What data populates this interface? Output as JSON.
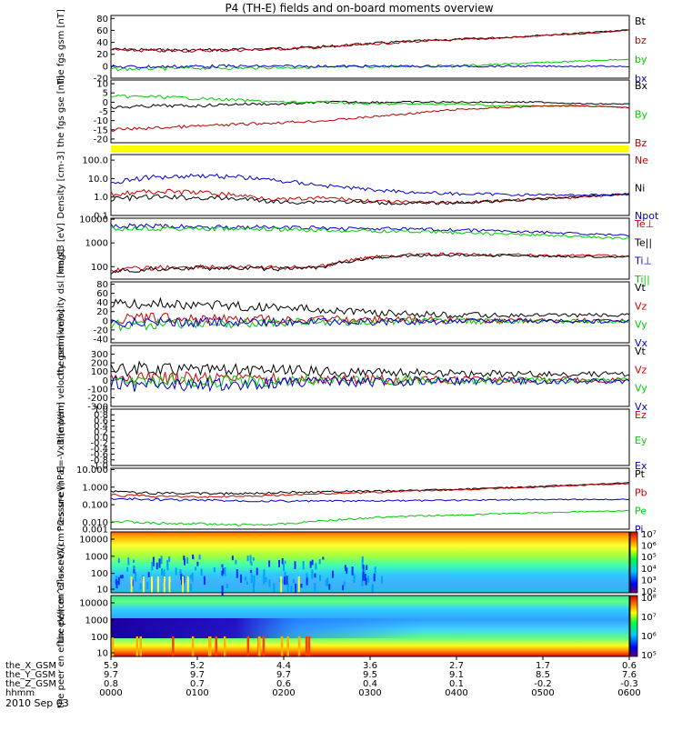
{
  "title": "P4 (TH-E) fields and on-board moments overview",
  "date_label": "2010 Sep 03",
  "chart_data": [
    {
      "type": "line",
      "ylabel": "the fgs gsm [nT]",
      "ylim": [
        -20,
        85
      ],
      "yticks": [
        "80",
        "60",
        "40",
        "20",
        "0",
        "-20"
      ],
      "ytick_values": [
        80,
        60,
        40,
        20,
        0,
        -20
      ],
      "series": [
        {
          "name": "Bt",
          "color": "#000000",
          "x": [
            0,
            0.5,
            1,
            1.5,
            2,
            2.5,
            3,
            3.5,
            4,
            4.5,
            5,
            5.5,
            6
          ],
          "values": [
            28,
            27,
            27,
            28,
            30,
            33,
            38,
            42,
            45,
            48,
            52,
            56,
            61
          ]
        },
        {
          "name": "bz",
          "color": "#bb0000",
          "x": [
            0,
            0.5,
            1,
            1.5,
            2,
            2.5,
            3,
            3.5,
            4,
            4.5,
            5,
            5.5,
            6
          ],
          "values": [
            27,
            26,
            26,
            27,
            29,
            32,
            37,
            41,
            44,
            47,
            51,
            55,
            60
          ]
        },
        {
          "name": "by",
          "color": "#00cc00",
          "x": [
            0,
            0.5,
            1,
            1.5,
            2,
            2.5,
            3,
            3.5,
            4,
            4.5,
            5,
            5.5,
            6
          ],
          "values": [
            -5,
            -4,
            -3,
            -3,
            -2,
            -2,
            -1,
            0,
            1,
            3,
            6,
            9,
            12
          ]
        },
        {
          "name": "bx",
          "color": "#0000cc",
          "x": [
            0,
            0.5,
            1,
            1.5,
            2,
            2.5,
            3,
            3.5,
            4,
            4.5,
            5,
            5.5,
            6
          ],
          "values": [
            -1,
            -1,
            0,
            0,
            0,
            0,
            0,
            0,
            0,
            0,
            0,
            0,
            0
          ]
        }
      ]
    },
    {
      "type": "line",
      "ylabel": "the fgs gse [nT]",
      "ylim": [
        -22,
        12
      ],
      "yticks": [
        "10",
        "5",
        "0",
        "-5",
        "-10",
        "-15",
        "-20"
      ],
      "ytick_values": [
        10,
        5,
        0,
        -5,
        -10,
        -15,
        -20
      ],
      "series": [
        {
          "name": "Bx",
          "color": "#000000",
          "x": [
            0,
            0.5,
            1,
            1.5,
            2,
            2.5,
            3,
            3.5,
            4,
            4.5,
            5,
            5.5,
            6
          ],
          "values": [
            -3,
            -2,
            -2,
            -1,
            -1,
            0,
            0,
            0,
            0,
            0,
            0,
            -1,
            -1
          ]
        },
        {
          "name": "By",
          "color": "#00cc00",
          "x": [
            0,
            0.5,
            1,
            1.5,
            2,
            2.5,
            3,
            3.5,
            4,
            4.5,
            5,
            5.5,
            6
          ],
          "values": [
            3,
            3,
            2,
            1,
            0,
            0,
            -1,
            -1,
            -1,
            -2,
            -2,
            -2,
            -3
          ]
        },
        {
          "name": "Bz",
          "color": "#bb0000",
          "x": [
            0,
            0.5,
            1,
            1.5,
            2,
            2.5,
            3,
            3.5,
            4,
            4.5,
            5,
            5.5,
            6
          ],
          "values": [
            -15,
            -14,
            -13,
            -12,
            -11,
            -10,
            -8,
            -6,
            -4,
            -3,
            -2,
            -2,
            -3
          ]
        }
      ]
    },
    {
      "type": "line",
      "scale": "log",
      "ylabel": "Density [cm-3]",
      "ylim": [
        0.1,
        200
      ],
      "yticks": [
        "100.0",
        "10.0",
        "1.0",
        "0.1"
      ],
      "ytick_values": [
        100,
        10,
        1,
        0.1
      ],
      "series": [
        {
          "name": "Ne",
          "color": "#cc0000",
          "x": [
            0,
            0.5,
            1,
            1.5,
            2,
            2.5,
            3,
            3.5,
            4,
            4.5,
            5,
            5.5,
            6
          ],
          "values": [
            1.5,
            2.0,
            1.8,
            1.2,
            0.7,
            0.9,
            0.6,
            0.5,
            0.5,
            0.6,
            0.8,
            1.0,
            1.4
          ]
        },
        {
          "name": "Ni",
          "color": "#000000",
          "x": [
            0,
            0.5,
            1,
            1.5,
            2,
            2.5,
            3,
            3.5,
            4,
            4.5,
            5,
            5.5,
            6
          ],
          "values": [
            0.8,
            1.0,
            0.9,
            0.8,
            0.5,
            0.6,
            0.5,
            0.45,
            0.5,
            0.6,
            0.8,
            1.1,
            1.5
          ]
        },
        {
          "name": "Npot",
          "color": "#0000cc",
          "x": [
            0,
            0.5,
            1,
            1.5,
            2,
            2.5,
            3,
            3.5,
            4,
            4.5,
            5,
            5.5,
            6
          ],
          "values": [
            6,
            12,
            15,
            12,
            7,
            4,
            2.5,
            1.8,
            1.5,
            1.4,
            1.3,
            1.3,
            1.4
          ]
        }
      ]
    },
    {
      "type": "line",
      "scale": "log",
      "ylabel": "magt3 [eV]",
      "ylim": [
        30,
        11000
      ],
      "yticks": [
        "10000",
        "1000",
        "100"
      ],
      "ytick_values": [
        10000,
        1000,
        100
      ],
      "series": [
        {
          "name": "Te⊥",
          "color": "#cc0000",
          "x": [
            0,
            0.5,
            1,
            1.5,
            2,
            2.5,
            3,
            3.5,
            4,
            4.5,
            5,
            5.5,
            6
          ],
          "values": [
            70,
            90,
            100,
            95,
            90,
            110,
            250,
            320,
            330,
            320,
            300,
            300,
            280
          ]
        },
        {
          "name": "Te||",
          "color": "#000000",
          "x": [
            0,
            0.5,
            1,
            1.5,
            2,
            2.5,
            3,
            3.5,
            4,
            4.5,
            5,
            5.5,
            6
          ],
          "values": [
            60,
            80,
            90,
            85,
            80,
            100,
            230,
            300,
            310,
            300,
            280,
            270,
            260
          ]
        },
        {
          "name": "Ti⊥",
          "color": "#0000cc",
          "x": [
            0,
            0.5,
            1,
            1.5,
            2,
            2.5,
            3,
            3.5,
            4,
            4.5,
            5,
            5.5,
            6
          ],
          "values": [
            5000,
            5000,
            4800,
            4600,
            4400,
            4200,
            4000,
            3800,
            3500,
            3200,
            2800,
            2400,
            2000
          ]
        },
        {
          "name": "Ti||",
          "color": "#00cc00",
          "x": [
            0,
            0.5,
            1,
            1.5,
            2,
            2.5,
            3,
            3.5,
            4,
            4.5,
            5,
            5.5,
            6
          ],
          "values": [
            4000,
            4200,
            4000,
            3800,
            3600,
            3400,
            3200,
            3000,
            2700,
            2400,
            2100,
            1800,
            1500
          ]
        }
      ]
    },
    {
      "type": "line",
      "ylabel": "the peim velocity dsl [km/s]",
      "ylim": [
        -48,
        85
      ],
      "yticks": [
        "80",
        "60",
        "40",
        "20",
        "0",
        "-20",
        "-40"
      ],
      "ytick_values": [
        80,
        60,
        40,
        20,
        0,
        -20,
        -40
      ],
      "series": [
        {
          "name": "Vt",
          "color": "#000000",
          "x": [
            0,
            0.5,
            1,
            1.5,
            2,
            2.5,
            3,
            3.5,
            4,
            4.5,
            5,
            5.5,
            6
          ],
          "values": [
            35,
            38,
            35,
            32,
            28,
            25,
            18,
            15,
            12,
            12,
            12,
            12,
            12
          ]
        },
        {
          "name": "Vz",
          "color": "#cc0000",
          "x": [
            0,
            0.5,
            1,
            1.5,
            2,
            2.5,
            3,
            3.5,
            4,
            4.5,
            5,
            5.5,
            6
          ],
          "values": [
            5,
            6,
            5,
            4,
            3,
            3,
            2,
            2,
            1,
            1,
            1,
            1,
            1
          ]
        },
        {
          "name": "Vy",
          "color": "#00cc00",
          "x": [
            0,
            0.5,
            1,
            1.5,
            2,
            2.5,
            3,
            3.5,
            4,
            4.5,
            5,
            5.5,
            6
          ],
          "values": [
            -10,
            -8,
            -7,
            -5,
            -4,
            -3,
            -2,
            -2,
            -1,
            -1,
            -1,
            -1,
            -1
          ]
        },
        {
          "name": "Vx",
          "color": "#0000cc",
          "x": [
            0,
            0.5,
            1,
            1.5,
            2,
            2.5,
            3,
            3.5,
            4,
            4.5,
            5,
            5.5,
            6
          ],
          "values": [
            -5,
            -4,
            -4,
            -3,
            -3,
            -2,
            -2,
            -2,
            -1,
            -1,
            -1,
            -1,
            -1
          ]
        }
      ]
    },
    {
      "type": "line",
      "ylabel": "the peim velocity gsm [km/s]",
      "ylim": [
        -300,
        400
      ],
      "yticks": [
        "300",
        "200",
        "100",
        "0",
        "-100",
        "-200",
        "-300"
      ],
      "ytick_values": [
        300,
        200,
        100,
        0,
        -100,
        -200,
        -300
      ],
      "series": [
        {
          "name": "Vt",
          "color": "#000000",
          "x": [
            0,
            0.5,
            1,
            1.5,
            2,
            2.5,
            3,
            3.5,
            4,
            4.5,
            5,
            5.5,
            6
          ],
          "values": [
            120,
            140,
            130,
            120,
            110,
            100,
            90,
            80,
            75,
            70,
            70,
            70,
            70
          ]
        },
        {
          "name": "Vz",
          "color": "#cc0000",
          "x": [
            0,
            0.5,
            1,
            1.5,
            2,
            2.5,
            3,
            3.5,
            4,
            4.5,
            5,
            5.5,
            6
          ],
          "values": [
            20,
            30,
            25,
            20,
            15,
            10,
            10,
            5,
            5,
            5,
            5,
            5,
            5
          ]
        },
        {
          "name": "Vy",
          "color": "#00cc00",
          "x": [
            0,
            0.5,
            1,
            1.5,
            2,
            2.5,
            3,
            3.5,
            4,
            4.5,
            5,
            5.5,
            6
          ],
          "values": [
            -20,
            -15,
            -10,
            -10,
            -5,
            -5,
            0,
            0,
            0,
            0,
            0,
            0,
            0
          ]
        },
        {
          "name": "Vx",
          "color": "#0000cc",
          "x": [
            0,
            0.5,
            1,
            1.5,
            2,
            2.5,
            3,
            3.5,
            4,
            4.5,
            5,
            5.5,
            6
          ],
          "values": [
            -40,
            -60,
            -50,
            -40,
            -30,
            -20,
            -20,
            -10,
            -10,
            -10,
            -10,
            -10,
            -10
          ]
        }
      ]
    },
    {
      "type": "line",
      "ylabel": "E=-VxB [mV/m]",
      "ylim": [
        -1.0,
        1.0
      ],
      "yticks": [
        "1.0",
        "0.8",
        "0.6",
        "0.4",
        "0.2",
        "0.0",
        "-0.2",
        "-0.4",
        "-0.6",
        "-0.8",
        "-1.0"
      ],
      "ytick_values": [
        1.0,
        0.8,
        0.6,
        0.4,
        0.2,
        0.0,
        -0.2,
        -0.4,
        -0.6,
        -0.8,
        -1.0
      ],
      "series": [
        {
          "name": "Ez",
          "color": "#cc0000",
          "x": [],
          "values": []
        },
        {
          "name": "Ey",
          "color": "#00cc00",
          "x": [],
          "values": []
        },
        {
          "name": "Ex",
          "color": "#0000cc",
          "x": [],
          "values": []
        }
      ]
    },
    {
      "type": "line",
      "scale": "log",
      "ylabel": "Pressure [nPa]",
      "ylim": [
        0.004,
        12
      ],
      "yticks": [
        "10.000",
        "1.000",
        "0.100",
        "0.010",
        "0.001"
      ],
      "ytick_values": [
        10,
        1,
        0.1,
        0.01,
        0.001
      ],
      "series": [
        {
          "name": "Pt",
          "color": "#000000",
          "x": [
            0,
            0.5,
            1,
            1.5,
            2,
            2.5,
            3,
            3.5,
            4,
            4.5,
            5,
            5.5,
            6
          ],
          "values": [
            0.55,
            0.45,
            0.45,
            0.42,
            0.5,
            0.55,
            0.6,
            0.65,
            0.75,
            0.9,
            1.1,
            1.4,
            1.8
          ]
        },
        {
          "name": "Pb",
          "color": "#cc0000",
          "x": [
            0,
            0.5,
            1,
            1.5,
            2,
            2.5,
            3,
            3.5,
            4,
            4.5,
            5,
            5.5,
            6
          ],
          "values": [
            0.35,
            0.3,
            0.28,
            0.3,
            0.35,
            0.42,
            0.5,
            0.6,
            0.7,
            0.85,
            1.0,
            1.3,
            1.6
          ]
        },
        {
          "name": "Pe",
          "color": "#00cc00",
          "x": [
            0,
            0.5,
            1,
            1.5,
            2,
            2.5,
            3,
            3.5,
            4,
            4.5,
            5,
            5.5,
            6
          ],
          "values": [
            0.012,
            0.009,
            0.008,
            0.007,
            0.008,
            0.012,
            0.018,
            0.022,
            0.025,
            0.03,
            0.035,
            0.04,
            0.045
          ]
        },
        {
          "name": "Pi",
          "color": "#0000cc",
          "x": [
            0,
            0.5,
            1,
            1.5,
            2,
            2.5,
            3,
            3.5,
            4,
            4.5,
            5,
            5.5,
            6
          ],
          "values": [
            0.22,
            0.2,
            0.18,
            0.17,
            0.16,
            0.16,
            0.16,
            0.17,
            0.18,
            0.19,
            0.2,
            0.2,
            0.2
          ]
        }
      ]
    },
    {
      "type": "heatmap",
      "ylabel": "the peir en eflux eV/(cm^2-s-sr-eV)",
      "yticks": [
        "10000",
        "1000",
        "100",
        "10"
      ],
      "colorbar_ticks": [
        "10⁷",
        "10⁶",
        "10⁵",
        "10⁴",
        "10³",
        "10²"
      ]
    },
    {
      "type": "heatmap",
      "ylabel": "the peer en eflux eV/(cm^2-s-sr-eV)",
      "yticks": [
        "10000",
        "1000",
        "100",
        "10"
      ],
      "colorbar_ticks": [
        "10⁸",
        "10⁷",
        "10⁶",
        "10⁵"
      ]
    }
  ],
  "x_axis": {
    "rows": [
      {
        "label": "the_X_GSM",
        "values": [
          "5.9",
          "5.2",
          "4.4",
          "3.6",
          "2.7",
          "1.7",
          "0.6"
        ]
      },
      {
        "label": "the_Y_GSM",
        "values": [
          "9.7",
          "9.7",
          "9.7",
          "9.5",
          "9.1",
          "8.5",
          "7.6"
        ]
      },
      {
        "label": "the_Z_GSM",
        "values": [
          "0.8",
          "0.7",
          "0.6",
          "0.4",
          "0.1",
          "-0.2",
          "-0.3"
        ]
      },
      {
        "label": "hhmm",
        "values": [
          "0000",
          "0100",
          "0200",
          "0300",
          "0400",
          "0500",
          "0600"
        ]
      }
    ]
  }
}
